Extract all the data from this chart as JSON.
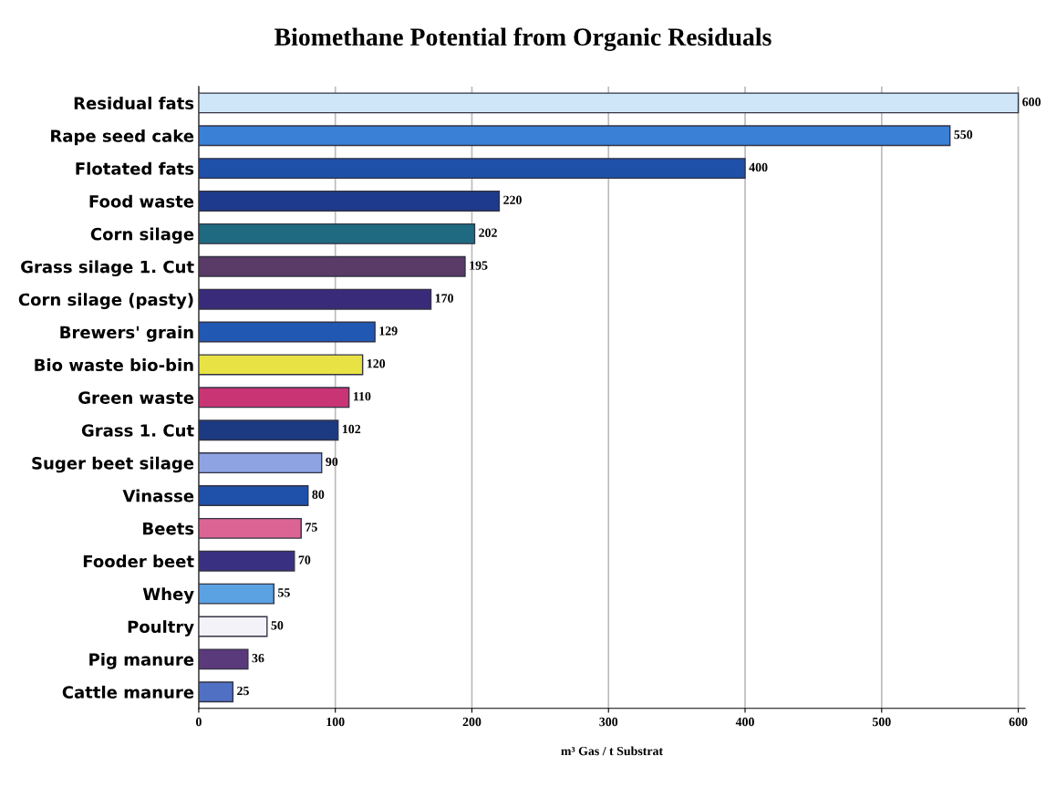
{
  "chart_data": {
    "type": "bar",
    "orientation": "horizontal",
    "title": "Biomethane Potential from Organic Residuals",
    "xlabel": "m³ Gas / t Substrat",
    "categories": [
      "Residual fats",
      "Rape seed cake",
      "Flotated fats",
      "Food waste",
      "Corn silage",
      "Grass silage 1. Cut",
      "Corn silage (pasty)",
      "Brewers' grain",
      "Bio waste bio-bin",
      "Green waste",
      "Grass 1. Cut",
      "Suger beet silage",
      "Vinasse",
      "Beets",
      "Fooder beet",
      "Whey",
      "Poultry",
      "Pig manure",
      "Cattle manure"
    ],
    "values": [
      600,
      550,
      400,
      220,
      202,
      195,
      170,
      129,
      120,
      110,
      102,
      90,
      80,
      75,
      70,
      55,
      50,
      36,
      25
    ],
    "colors": [
      "#cfe6f8",
      "#3a80d6",
      "#1f50a8",
      "#1d3a8c",
      "#1f6a80",
      "#5a3a66",
      "#3a2a7a",
      "#2058b4",
      "#e8e244",
      "#c83474",
      "#1c3a82",
      "#8ea4e2",
      "#1f50aa",
      "#dc6494",
      "#3a3082",
      "#5aa2e2",
      "#f2f2f8",
      "#5a3a7a",
      "#5070c4"
    ],
    "data_labels": true,
    "xlim": [
      0,
      605
    ],
    "xticks": [
      0,
      100,
      200,
      300,
      400,
      500,
      600
    ],
    "grid": "x"
  }
}
